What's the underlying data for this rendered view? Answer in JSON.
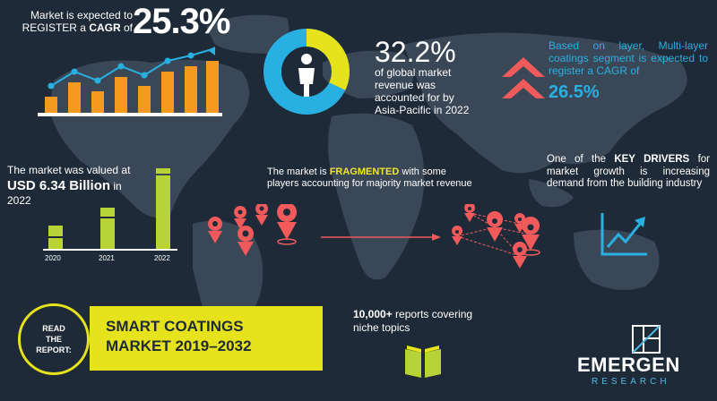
{
  "cagr": {
    "line1": "Market is expected to",
    "line2_prefix": "REGISTER a ",
    "line2_bold": "CAGR",
    "line2_suffix": " of",
    "value": "25.3%"
  },
  "asia_pacific": {
    "value": "32.2%",
    "text": "of global market revenue was accounted for by Asia-Pacific in 2022",
    "share_fraction": 0.322
  },
  "layer": {
    "text": "Based on layer, Multi-layer coatings segment is expected to register a CAGR of",
    "value": "26.5%"
  },
  "valuation": {
    "line1": "The market was valued at",
    "amount": "USD 6.34 Billion",
    "amount_suffix": " in",
    "year": "2022",
    "bar_years": [
      "2020",
      "2021",
      "2022"
    ]
  },
  "fragmented": {
    "prefix": "The market is ",
    "highlight": "FRAGMENTED",
    "suffix": " with some players accounting for majority market revenue"
  },
  "drivers": {
    "prefix": "One of the ",
    "bold": "KEY DRIVERS",
    "suffix": " for market growth is increasing demand from the building industry"
  },
  "report": {
    "read_label_1": "READ",
    "read_label_2": "THE",
    "read_label_3": "REPORT:",
    "title_1": "SMART COATINGS",
    "title_2": "MARKET 2019–2032"
  },
  "reports_count": {
    "bold": "10,000+",
    "suffix": " reports covering niche topics"
  },
  "logo": {
    "word": "EMERGEN",
    "sub": "RESEARCH"
  },
  "colors": {
    "background": "#1e2a38",
    "map": "#3a4757",
    "orange": "#f59a1e",
    "yellow": "#e6e21c",
    "green": "#b7d335",
    "blue": "#29b0e3",
    "red": "#f05a5b"
  }
}
